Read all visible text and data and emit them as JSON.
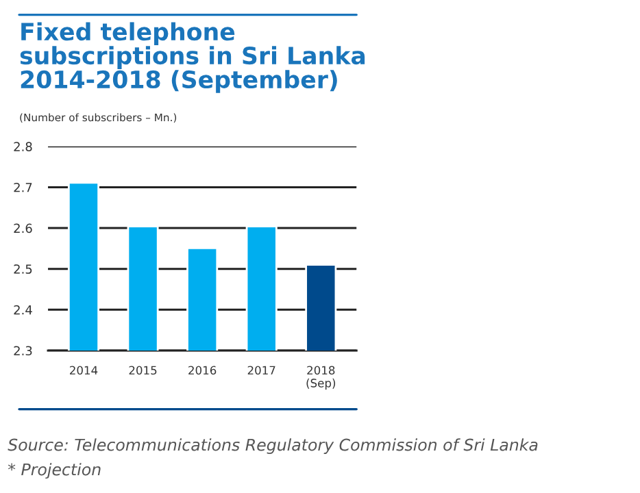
{
  "chart_data": {
    "type": "bar",
    "title": "Fixed telephone\nsubscriptions in Sri Lanka\n2014-2018 (September)",
    "subtitle": "(Number of subscribers – Mn.)",
    "categories": [
      "2014",
      "2015",
      "2016",
      "2017",
      "2018\n(Sep)"
    ],
    "values": [
      2.711,
      2.604,
      2.551,
      2.604,
      2.51
    ],
    "colors": [
      "#00aeef",
      "#00aeef",
      "#00aeef",
      "#00aeef",
      "#004a8c"
    ],
    "ylim": [
      2.3,
      2.8
    ],
    "yticks": [
      2.3,
      2.4,
      2.5,
      2.6,
      2.7,
      2.8
    ],
    "grid": "y",
    "annotations": [
      "Source: Telecommunications Regulatory Commission of Sri Lanka",
      "* Projection"
    ]
  }
}
